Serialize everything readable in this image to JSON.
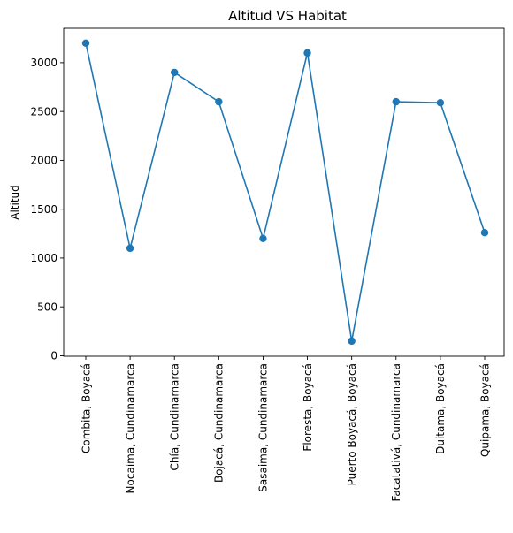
{
  "chart_data": {
    "type": "line",
    "title": "Altitud VS Habitat",
    "xlabel": "",
    "ylabel": "Altitud",
    "categories": [
      "Combita, Boyacá",
      "Nocaima, Cundinamarca",
      "Chía, Cundinamarca",
      "Bojacá, Cundinamarca",
      "Sasaima, Cundinamarca",
      "Floresta, Boyacá",
      "Puerto Boyacá, Boyacá",
      "Facatativá, Cundinamarca",
      "Duitama, Boyacá",
      "Quipama, Boyacá"
    ],
    "values": [
      3200,
      1100,
      2900,
      2600,
      1200,
      3100,
      150,
      2600,
      2590,
      1260
    ],
    "yticks": [
      0,
      500,
      1000,
      1500,
      2000,
      2500,
      3000
    ],
    "ylim": [
      -5,
      3352
    ],
    "grid": false,
    "markers": true,
    "color": "#1f77b4"
  }
}
